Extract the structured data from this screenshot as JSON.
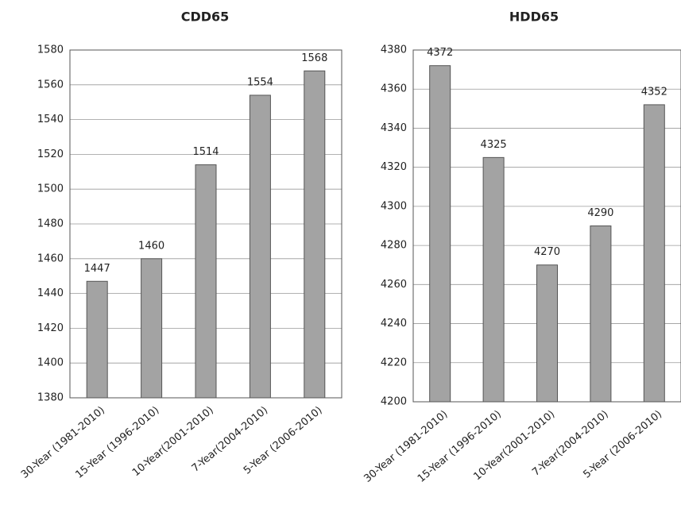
{
  "chart_data": [
    {
      "type": "bar",
      "title": "CDD65",
      "categories": [
        "30-Year (1981-2010)",
        "15-Year (1996-2010)",
        "10-Year(2001-2010)",
        "7-Year(2004-2010)",
        "5-Year (2006-2010)"
      ],
      "values": [
        1447,
        1460,
        1514,
        1554,
        1568
      ],
      "color": "#a3a3a3",
      "ylim": [
        1380,
        1580
      ],
      "yticks": [
        1380,
        1400,
        1420,
        1440,
        1460,
        1480,
        1500,
        1520,
        1540,
        1560,
        1580
      ],
      "grid": true
    },
    {
      "type": "bar",
      "title": "HDD65",
      "categories": [
        "30-Year (1981-2010)",
        "15-Year (1996-2010)",
        "10-Year(2001-2010)",
        "7-Year(2004-2010)",
        "5-Year (2006-2010)"
      ],
      "values": [
        4372,
        4325,
        4270,
        4290,
        4352
      ],
      "color": "#a3a3a3",
      "ylim": [
        4200,
        4380
      ],
      "yticks": [
        4200,
        4220,
        4240,
        4260,
        4280,
        4300,
        4320,
        4340,
        4360,
        4380
      ],
      "grid": true
    }
  ]
}
